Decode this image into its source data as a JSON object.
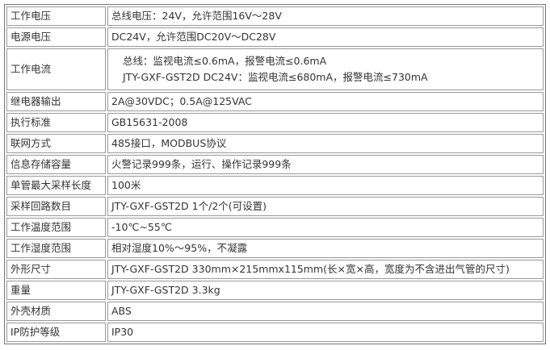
{
  "rows": [
    {
      "label": "工作电压",
      "value": "总线电压：24V，允许范围16V～28V"
    },
    {
      "label": "电源电压",
      "value": "DC24V，允许范围DC20V～DC28V"
    },
    {
      "label": "工作电流",
      "lines": [
        "总线：监视电流≤0.6mA，报警电流≤0.6mA",
        "JTY-GXF-GST2D DC24V：监视电流≤680mA，报警电流≤730mA"
      ]
    },
    {
      "label": "继电器输出",
      "value": "2A@30VDC；0.5A@125VAC"
    },
    {
      "label": "执行标准",
      "value": "GB15631-2008"
    },
    {
      "label": "联网方式",
      "value": "485接口，MODBUS协议"
    },
    {
      "label": "信息存储容量",
      "value": "火警记录999条，运行、操作记录999条"
    },
    {
      "label": "单管最大采样长度",
      "value": "100米"
    },
    {
      "label": "采样回路数目",
      "value": "JTY-GXF-GST2D 1个/2个(可设置)"
    },
    {
      "label": "工作温度范围",
      "value": "-10℃~55℃"
    },
    {
      "label": "工作湿度范围",
      "value": "相对湿度10%～95%，不凝露"
    },
    {
      "label": "外形尺寸",
      "value": "JTY-GXF-GST2D 330mm×215mmx115mm(长×宽×高，宽度为不含进出气管的尺寸)"
    },
    {
      "label": "重量",
      "value": "JTY-GXF-GST2D 3.3kg"
    },
    {
      "label": "外壳材质",
      "value": "ABS"
    },
    {
      "label": "IP防护等级",
      "value": "IP30"
    }
  ]
}
